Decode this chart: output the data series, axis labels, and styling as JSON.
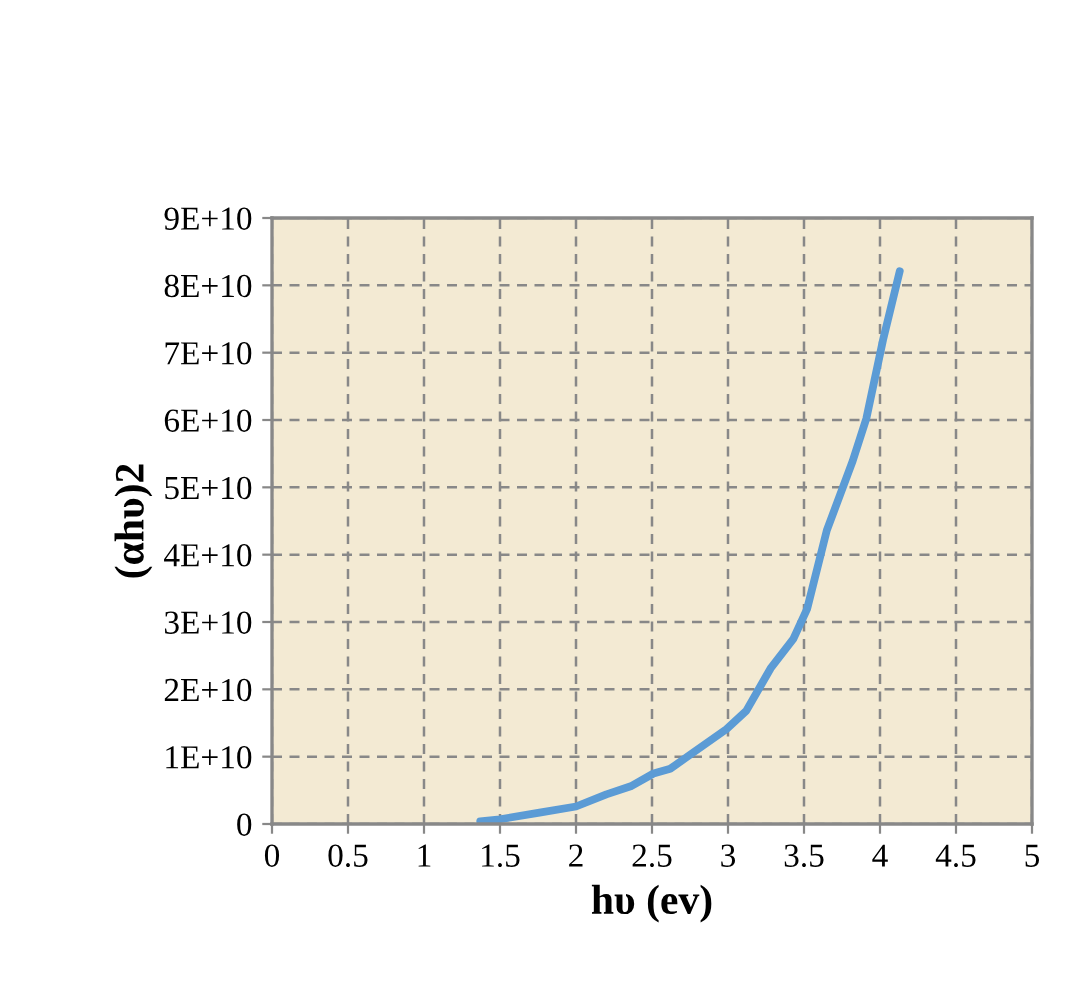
{
  "chart_data": {
    "type": "line",
    "xlabel": "hυ (ev)",
    "ylabel": "(αhυ)2",
    "x": [
      1.37,
      1.5,
      1.76,
      2.0,
      2.2,
      2.36,
      2.51,
      2.62,
      2.77,
      2.99,
      3.12,
      3.28,
      3.43,
      3.52,
      3.65,
      3.82,
      3.91,
      4.02,
      4.13
    ],
    "series": [
      {
        "color": "#5b9bd5",
        "values": [
          400000000.0,
          700000000.0,
          1700000000.0,
          2600000000.0,
          4400000000.0,
          5600000000.0,
          7500000000.0,
          8200000000.0,
          10600000000.0,
          14100000000.0,
          16800000000.0,
          23100000000.0,
          27500000000.0,
          31900000000.0,
          43600000000.0,
          53900000000.0,
          60200000000.0,
          71900000000.0,
          82100000000.0
        ]
      }
    ],
    "xlim": [
      0,
      5
    ],
    "xticks": [
      0,
      0.5,
      1,
      1.5,
      2,
      2.5,
      3,
      3.5,
      4,
      4.5,
      5
    ],
    "ylim": [
      0,
      90000000000
    ],
    "yticks": [
      0,
      {
        "value": 10000000000,
        "label": "1E+10"
      },
      {
        "value": 20000000000,
        "label": "2E+10"
      },
      {
        "value": 30000000000,
        "label": "3E+10"
      },
      {
        "value": 40000000000,
        "label": "4E+10"
      },
      {
        "value": 50000000000,
        "label": "5E+10"
      },
      {
        "value": 60000000000,
        "label": "6E+10"
      },
      {
        "value": 70000000000,
        "label": "7E+10"
      },
      {
        "value": 80000000000,
        "label": "8E+10"
      },
      {
        "value": 90000000000,
        "label": "9E+10"
      }
    ],
    "grid": true,
    "marker": "none",
    "line_style": "solid"
  }
}
